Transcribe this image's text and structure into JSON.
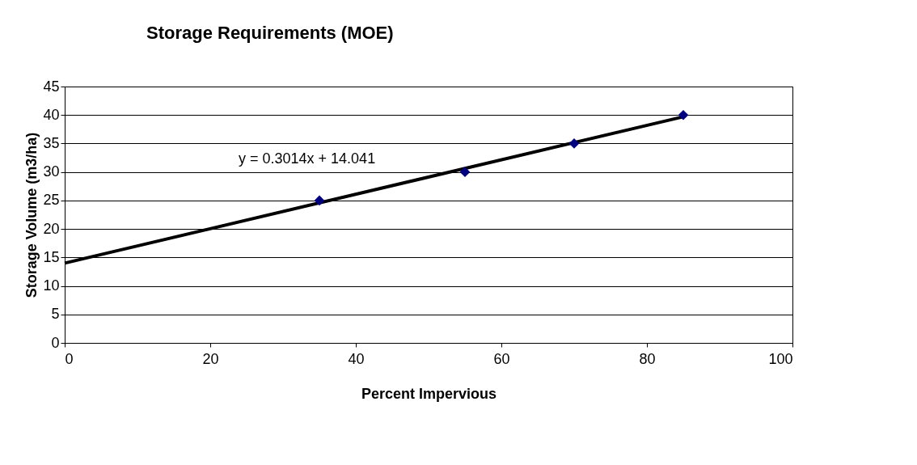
{
  "chart_data": {
    "type": "scatter",
    "title": "Storage Requirements (MOE)",
    "xlabel": "Percent Impervious",
    "ylabel": "Storage Volume (m3/ha)",
    "x": [
      35,
      55,
      70,
      85
    ],
    "series": [
      {
        "color": "#000080",
        "marker": "diamond",
        "values": [
          25,
          30,
          35,
          40
        ]
      },
      {
        "type": "line",
        "color": "#000000",
        "x": [
          0,
          85
        ],
        "values": [
          14.0,
          39.7
        ],
        "line_style": "solid"
      }
    ],
    "annotations": [
      "y = 0.3014x + 14.041"
    ],
    "xlim": [
      0,
      100
    ],
    "xticks": [
      0,
      20,
      40,
      60,
      80,
      100
    ],
    "ylim": [
      0,
      45
    ],
    "yticks": [
      0,
      5,
      10,
      15,
      20,
      25,
      30,
      35,
      40,
      45
    ],
    "grid": "y"
  }
}
